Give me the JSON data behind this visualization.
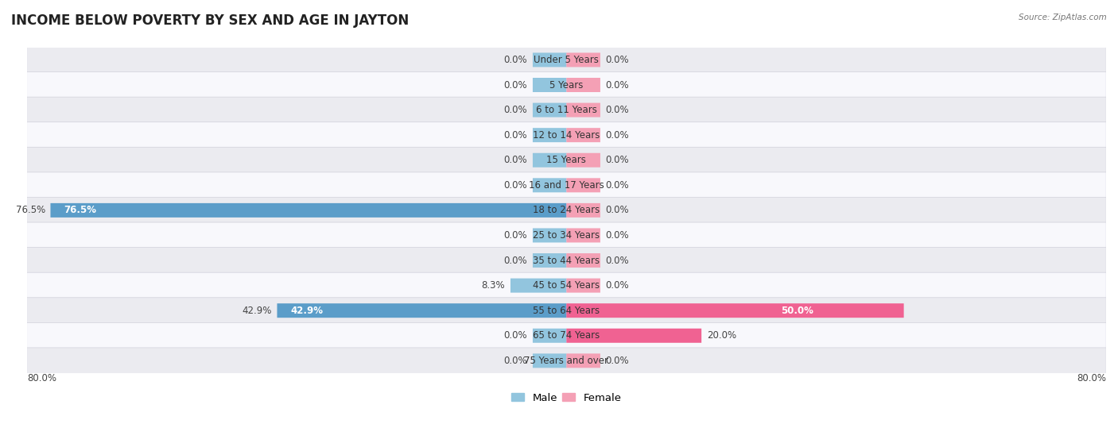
{
  "title": "INCOME BELOW POVERTY BY SEX AND AGE IN JAYTON",
  "source": "Source: ZipAtlas.com",
  "categories": [
    "Under 5 Years",
    "5 Years",
    "6 to 11 Years",
    "12 to 14 Years",
    "15 Years",
    "16 and 17 Years",
    "18 to 24 Years",
    "25 to 34 Years",
    "35 to 44 Years",
    "45 to 54 Years",
    "55 to 64 Years",
    "65 to 74 Years",
    "75 Years and over"
  ],
  "male_values": [
    0.0,
    0.0,
    0.0,
    0.0,
    0.0,
    0.0,
    76.5,
    0.0,
    0.0,
    8.3,
    42.9,
    0.0,
    0.0
  ],
  "female_values": [
    0.0,
    0.0,
    0.0,
    0.0,
    0.0,
    0.0,
    0.0,
    0.0,
    0.0,
    0.0,
    50.0,
    20.0,
    0.0
  ],
  "male_color": "#92c5de",
  "female_color": "#f4a0b5",
  "male_strong_color": "#5b9dc9",
  "female_strong_color": "#f06292",
  "bg_color_A": "#ebebf0",
  "bg_color_B": "#f8f8fc",
  "row_border_color": "#d0d0da",
  "xlim": 80.0,
  "label_fontsize": 8.5,
  "title_fontsize": 12,
  "bar_height": 0.55,
  "min_bar_display": 5.0
}
